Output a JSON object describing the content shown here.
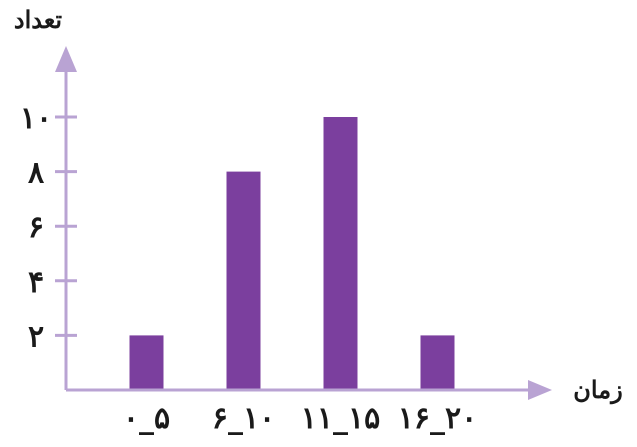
{
  "chart_data": {
    "type": "bar",
    "ylabel": "تعداد",
    "xlabel": "زمان",
    "categories": [
      "۰_۵",
      "۶_۱۰",
      "۱۱_۱۵",
      "۱۶_۲۰"
    ],
    "values": [
      2,
      8,
      10,
      2
    ],
    "ylim": [
      0,
      12
    ],
    "yticks": [
      2,
      4,
      6,
      8,
      10
    ],
    "ytick_labels": [
      "۲",
      "۴",
      "۶",
      "۸",
      "۱۰"
    ],
    "grid": false,
    "colors": {
      "bar": "#7b3f9e",
      "axis": "#b9a3d3"
    }
  }
}
